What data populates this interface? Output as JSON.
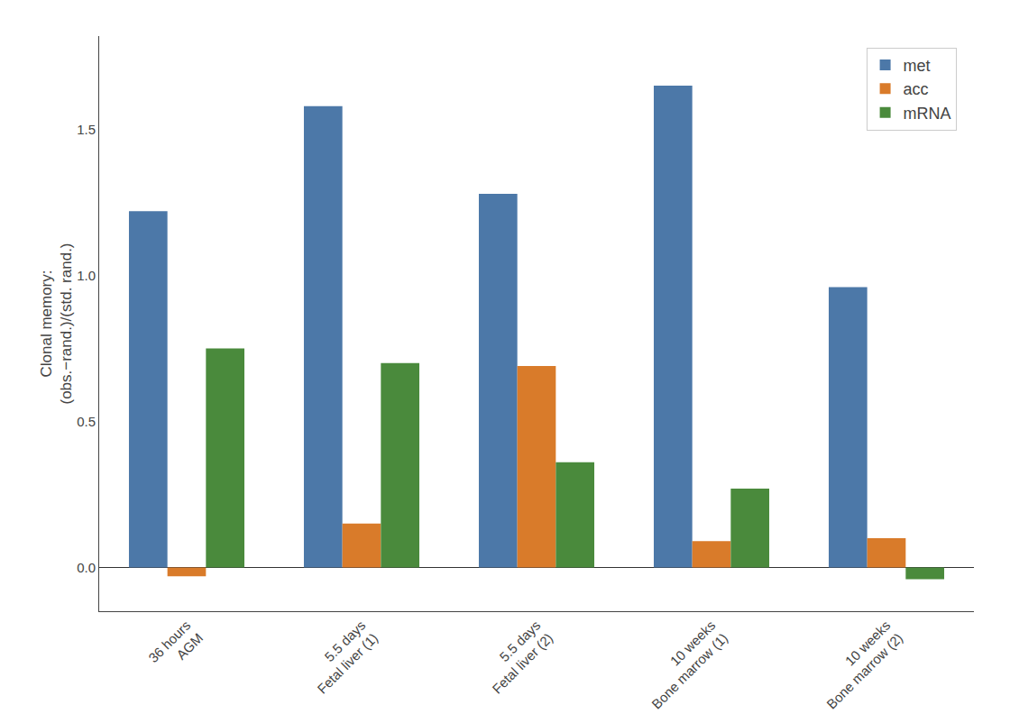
{
  "chart_data": {
    "type": "bar",
    "ylabel": "Clonal memory:\n(obs.−rand.)/(std. rand.)",
    "categories": [
      "36 hours\nAGM",
      "5.5 days\nFetal liver (1)",
      "5.5 days\nFetal liver (2)",
      "10 weeks\nBone marrow (1)",
      "10 weeks\nBone marrow (2)"
    ],
    "series": [
      {
        "name": "met",
        "color": "#4C78A8",
        "values": [
          1.22,
          1.58,
          1.28,
          1.65,
          0.96
        ]
      },
      {
        "name": "acc",
        "color": "#D97B2A",
        "values": [
          -0.03,
          0.15,
          0.69,
          0.09,
          0.1
        ]
      },
      {
        "name": "mRNA",
        "color": "#4A8A3C",
        "values": [
          0.75,
          0.7,
          0.36,
          0.27,
          -0.04
        ]
      }
    ],
    "ylim": [
      -0.15,
      1.82
    ],
    "yticks": [
      {
        "value": 0.0,
        "label": "0.0"
      },
      0.5,
      {
        "value": 1.0,
        "label": "1.0"
      },
      1.5
    ],
    "grid": false,
    "legend": "upper right"
  }
}
